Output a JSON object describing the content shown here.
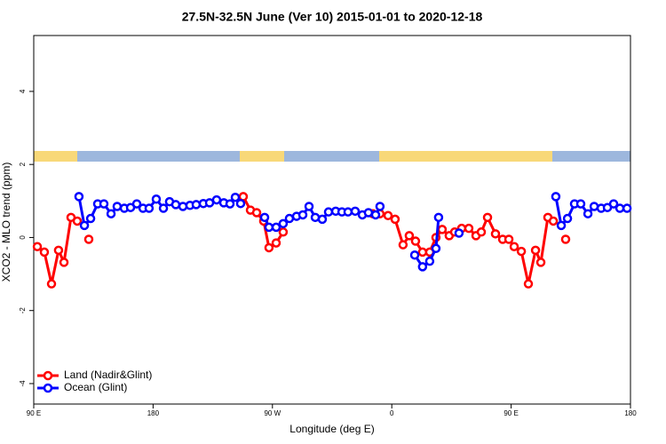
{
  "chart_data": {
    "type": "line",
    "title": "27.5N-32.5N June (Ver 10)   2015-01-01 to 2020-12-18",
    "x_label": "Longitude (deg E)",
    "y_label": "XCO2 - MLO trend (ppm)",
    "xlim": [
      90,
      540
    ],
    "xticks": [
      {
        "value": 90,
        "label": "90 E"
      },
      {
        "value": 180,
        "label": "180"
      },
      {
        "value": 270,
        "label": "90 W"
      },
      {
        "value": 360,
        "label": "0"
      },
      {
        "value": 450,
        "label": "90 E"
      },
      {
        "value": 540,
        "label": "180"
      }
    ],
    "ylim": [
      -4.56,
      5.53
    ],
    "yticks": [
      -4,
      -2,
      0,
      2,
      4
    ],
    "legend": "bottom-left",
    "series": [
      {
        "name": "Land (Nadir&Glint)",
        "color": "#ff0000",
        "x": [
          92.7,
          98.0,
          103.4,
          108.7,
          112.8,
          118.1,
          122.8,
          null,
          131.5,
          null,
          248.0,
          253.4,
          258.1,
          263.4,
          267.4,
          272.8,
          278.1,
          null,
          345.7,
          351.1,
          357.2,
          362.5,
          368.5,
          373.2,
          377.9,
          383.2,
          388.6,
          393.3,
          398.0,
          403.3,
          407.4,
          412.7,
          418.1,
          423.5,
          427.5,
          432.2,
          438.2,
          443.6,
          448.3,
          452.3,
          457.7,
          463.0,
          468.4,
          472.4,
          477.7,
          481.8,
          null,
          491.1
        ],
        "values": [
          -0.25,
          -0.4,
          -1.27,
          -0.35,
          -0.68,
          0.55,
          0.45,
          null,
          -0.05,
          null,
          1.12,
          0.75,
          0.68,
          0.45,
          -0.28,
          -0.15,
          0.15,
          null,
          0.65,
          0.65,
          0.6,
          0.5,
          -0.2,
          0.05,
          -0.1,
          -0.4,
          -0.4,
          0.0,
          0.22,
          0.05,
          0.15,
          0.25,
          0.25,
          0.05,
          0.15,
          0.55,
          0.1,
          -0.05,
          -0.05,
          -0.25,
          -0.38,
          -1.27,
          -0.35,
          -0.68,
          0.55,
          0.45,
          null,
          -0.05
        ]
      },
      {
        "name": "Ocean (Glint)",
        "color": "#0000ff",
        "x": [
          124.1,
          128.2,
          132.9,
          138.2,
          142.9,
          148.3,
          152.9,
          158.3,
          163.0,
          167.7,
          172.4,
          177.0,
          182.4,
          187.8,
          192.4,
          197.1,
          202.5,
          207.8,
          212.5,
          217.9,
          222.6,
          227.9,
          233.3,
          238.0,
          242.0,
          246.0,
          null,
          264.1,
          267.4,
          272.8,
          278.1,
          282.8,
          288.2,
          292.9,
          297.6,
          302.3,
          307.6,
          312.3,
          317.7,
          322.4,
          327.0,
          332.4,
          337.8,
          342.4,
          347.8,
          351.1,
          null,
          377.3,
          383.2,
          388.6,
          393.3,
          395.3,
          null,
          410.7,
          null,
          483.7,
          487.8,
          492.5,
          497.8,
          502.5,
          507.9,
          512.6,
          517.9,
          522.6,
          527.3,
          532.0,
          537.4
        ],
        "values": [
          1.12,
          0.33,
          0.52,
          0.92,
          0.92,
          0.65,
          0.85,
          0.8,
          0.82,
          0.92,
          0.8,
          0.8,
          1.05,
          0.8,
          0.98,
          0.9,
          0.85,
          0.88,
          0.9,
          0.93,
          0.95,
          1.03,
          0.95,
          0.92,
          1.1,
          0.93,
          null,
          0.55,
          0.28,
          0.28,
          0.38,
          0.52,
          0.58,
          0.62,
          0.85,
          0.55,
          0.5,
          0.7,
          0.72,
          0.7,
          0.7,
          0.72,
          0.62,
          0.68,
          0.62,
          0.85,
          null,
          -0.48,
          -0.8,
          -0.65,
          -0.3,
          0.55,
          null,
          0.12,
          null,
          1.12,
          0.33,
          0.52,
          0.92,
          0.92,
          0.65,
          0.85,
          0.8,
          0.82,
          0.92,
          0.8,
          0.8
        ]
      }
    ]
  }
}
